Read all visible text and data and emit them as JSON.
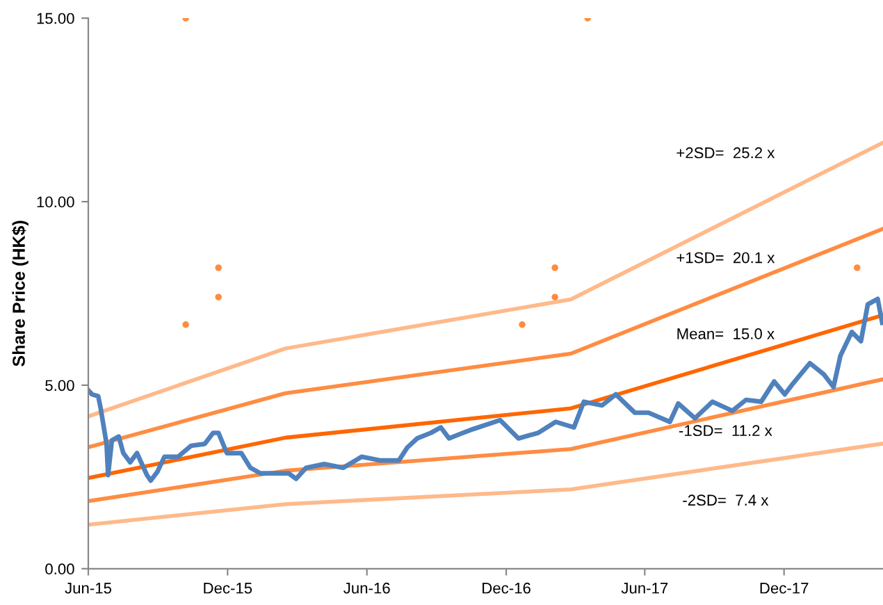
{
  "chart_data": {
    "type": "line",
    "ylabel": "Share Price (HK$)",
    "xlim": [
      "2015-06-01",
      "2018-04-10"
    ],
    "xticks": [
      {
        "value": "2015-06-01",
        "label": "Jun-15"
      },
      {
        "value": "2015-12-01",
        "label": "Dec-15"
      },
      {
        "value": "2016-06-01",
        "label": "Jun-16"
      },
      {
        "value": "2016-12-01",
        "label": "Dec-16"
      },
      {
        "value": "2017-06-01",
        "label": "Jun-17"
      },
      {
        "value": "2017-12-01",
        "label": "Dec-17"
      }
    ],
    "ylim": [
      0,
      15
    ],
    "yticks": [
      {
        "value": 0,
        "label": "0.00"
      },
      {
        "value": 5,
        "label": "5.00"
      },
      {
        "value": 10,
        "label": "10.00"
      },
      {
        "value": 15,
        "label": "15.00"
      }
    ],
    "grid": false,
    "legend": false,
    "series": [
      {
        "name": "-2SD=  7.4 x",
        "color": "#ffb98a",
        "x": [
          "2015-06-01",
          "2016-02-15",
          "2017-02-24",
          "2018-04-10"
        ],
        "values": [
          1.2,
          1.76,
          2.16,
          3.41
        ]
      },
      {
        "name": "-1SD=  11.2 x",
        "color": "#ff8c42",
        "x": [
          "2015-06-01",
          "2016-02-15",
          "2017-02-24",
          "2018-04-10"
        ],
        "values": [
          1.84,
          2.67,
          3.26,
          5.16
        ]
      },
      {
        "name": "Mean=  15.0 x",
        "color": "#ff6600",
        "x": [
          "2015-06-01",
          "2016-02-15",
          "2017-02-24",
          "2018-04-10"
        ],
        "values": [
          2.47,
          3.57,
          4.37,
          6.91
        ]
      },
      {
        "name": "+1SD=  20.1 x",
        "color": "#ff8c42",
        "x": [
          "2015-06-01",
          "2016-02-15",
          "2017-02-24",
          "2018-04-10"
        ],
        "values": [
          3.31,
          4.78,
          5.86,
          9.26
        ]
      },
      {
        "name": "+2SD=  25.2 x",
        "color": "#ffb98a",
        "x": [
          "2015-06-01",
          "2016-02-15",
          "2017-02-24",
          "2018-04-10"
        ],
        "values": [
          4.15,
          6.0,
          7.34,
          11.61
        ]
      },
      {
        "color": "#4f81bd",
        "x": [
          "2015-06-01",
          "2015-06-06",
          "2015-06-14",
          "2015-06-17",
          "2015-06-25",
          "2015-06-27",
          "2015-07-02",
          "2015-07-11",
          "2015-07-17",
          "2015-07-26",
          "2015-08-04",
          "2015-08-17",
          "2015-08-22",
          "2015-08-31",
          "2015-09-09",
          "2015-09-27",
          "2015-10-14",
          "2015-11-01",
          "2015-11-12",
          "2015-11-19",
          "2015-11-30",
          "2015-12-19",
          "2015-12-31",
          "2016-01-13",
          "2016-01-31",
          "2016-02-19",
          "2016-02-29",
          "2016-03-13",
          "2016-04-06",
          "2016-05-01",
          "2016-05-25",
          "2016-06-18",
          "2016-07-13",
          "2016-07-24",
          "2016-08-06",
          "2016-08-24",
          "2016-09-06",
          "2016-09-17",
          "2016-10-05",
          "2016-10-18",
          "2016-11-23",
          "2016-12-17",
          "2017-01-12",
          "2017-02-04",
          "2017-02-28",
          "2017-03-13",
          "2017-04-06",
          "2017-04-24",
          "2017-05-19",
          "2017-06-06",
          "2017-07-04",
          "2017-07-15",
          "2017-08-06",
          "2017-08-29",
          "2017-09-24",
          "2017-10-12",
          "2017-11-01",
          "2017-11-18",
          "2017-12-02",
          "2017-12-11",
          "2018-01-04",
          "2018-01-22",
          "2018-02-04",
          "2018-02-13",
          "2018-02-28",
          "2018-03-12",
          "2018-03-21",
          "2018-04-03",
          "2018-04-09"
        ],
        "values": [
          4.86,
          4.75,
          4.7,
          4.4,
          3.4,
          2.55,
          3.5,
          3.6,
          3.15,
          2.9,
          3.15,
          2.55,
          2.4,
          2.65,
          3.05,
          3.05,
          3.35,
          3.4,
          3.7,
          3.7,
          3.15,
          3.15,
          2.75,
          2.6,
          2.6,
          2.6,
          2.45,
          2.75,
          2.85,
          2.75,
          3.05,
          2.95,
          2.95,
          3.3,
          3.55,
          3.7,
          3.85,
          3.55,
          3.7,
          3.8,
          4.05,
          3.55,
          3.7,
          4.0,
          3.85,
          4.55,
          4.45,
          4.75,
          4.25,
          4.25,
          4.0,
          4.5,
          4.1,
          4.55,
          4.3,
          4.6,
          4.55,
          5.1,
          4.75,
          5.0,
          5.6,
          5.3,
          4.95,
          5.8,
          6.45,
          6.2,
          7.2,
          7.35,
          6.7
        ]
      },
      {
        "type": "scatter",
        "color": "#ff8c42",
        "marker": "circle",
        "x": [
          "2015-10-07",
          "2015-11-19",
          "2015-11-19",
          "2015-10-07",
          "2017-03-18",
          "2017-02-03",
          "2017-02-03",
          "2016-12-22",
          "2018-03-07"
        ],
        "values": [
          15.0,
          8.2,
          7.4,
          6.65,
          15.0,
          8.2,
          7.4,
          6.65,
          8.2
        ]
      }
    ]
  }
}
